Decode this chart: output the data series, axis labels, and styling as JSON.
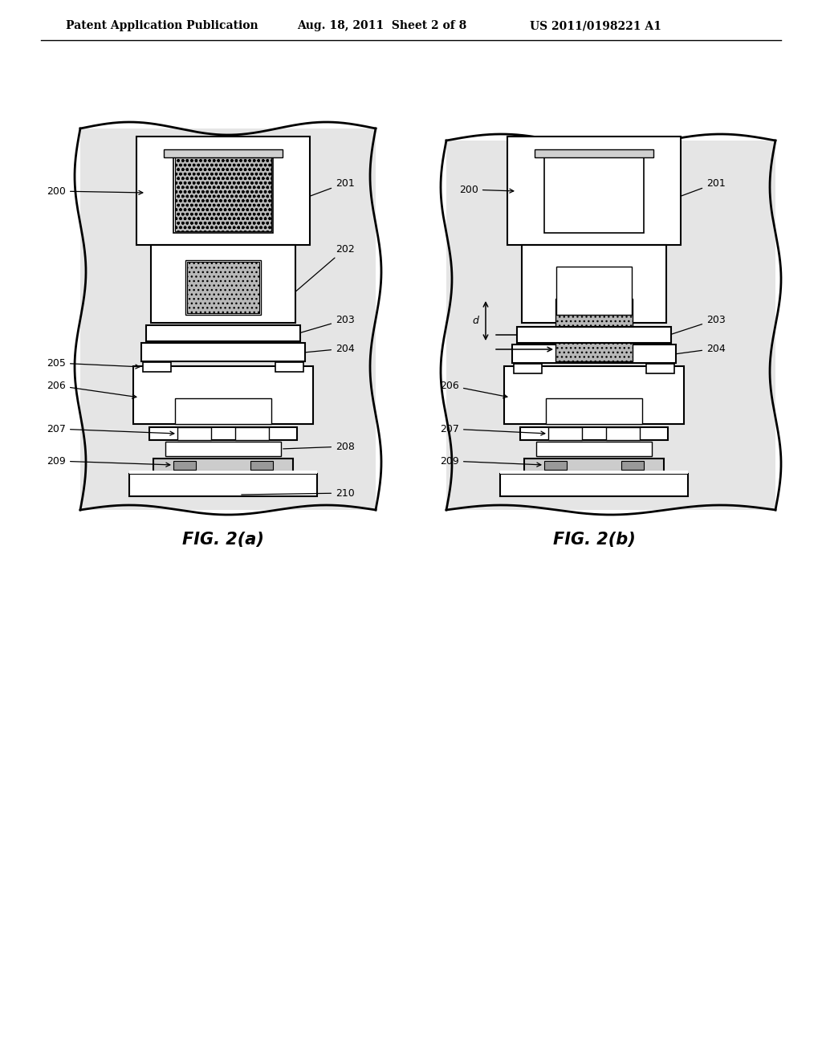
{
  "header_left": "Patent Application Publication",
  "header_mid": "Aug. 18, 2011  Sheet 2 of 8",
  "header_right": "US 2011/0198221 A1",
  "fig_a_label": "FIG. 2(a)",
  "fig_b_label": "FIG. 2(b)",
  "bg_color": "#ffffff"
}
